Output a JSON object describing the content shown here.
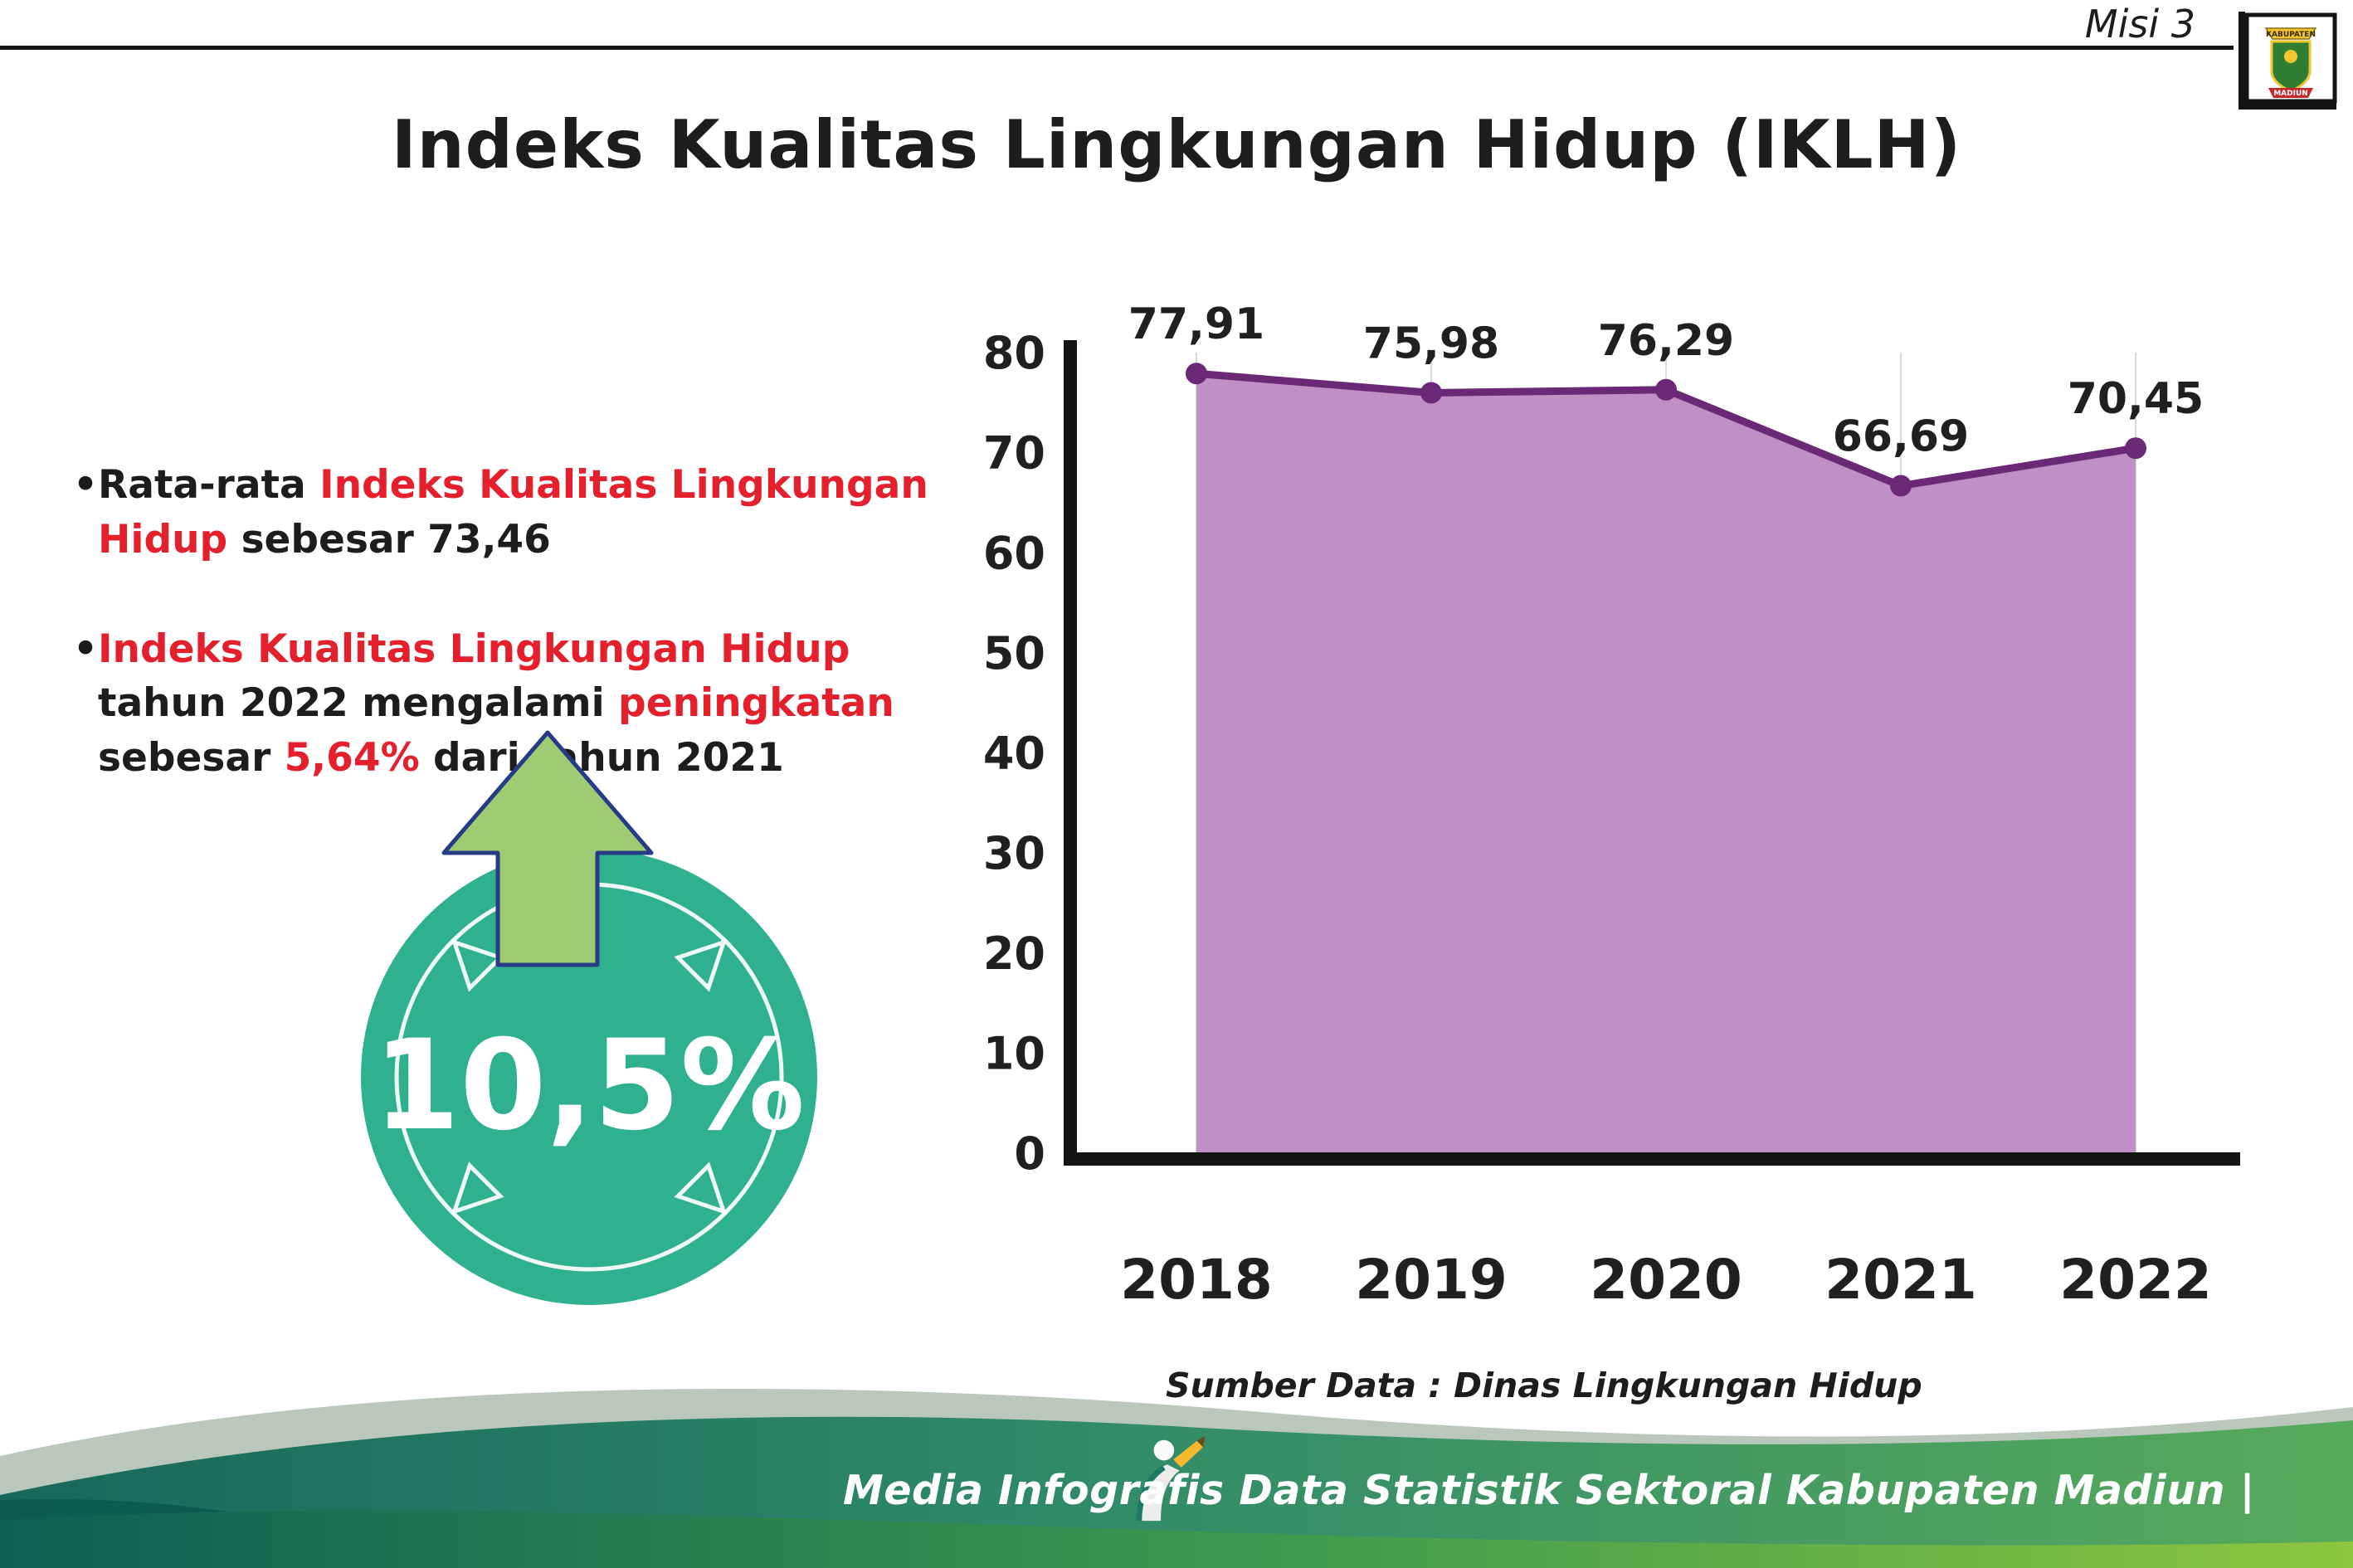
{
  "colors": {
    "red": "#e5202d",
    "ink": "#1d1d1b",
    "teal": "#2fb190",
    "arrow_green": "#9fcb73",
    "purple_fill": "#c08fc6",
    "purple_line": "#6b2877"
  },
  "header": {
    "misi_label": "Misi 3",
    "title": "Indeks Kualitas Lingkungan Hidup (IKLH)"
  },
  "logo": {
    "top": "KABUPATEN",
    "bottom": "MADIUN"
  },
  "bullet_char": "•",
  "bullets": [
    {
      "segments": [
        {
          "text": "Rata-rata ",
          "style": "plain"
        },
        {
          "text": "Indeks Kualitas Lingkungan Hidup",
          "style": "red"
        },
        {
          "text": " sebesar 73,46",
          "style": "plain"
        }
      ]
    },
    {
      "segments": [
        {
          "text": "Indeks Kualitas Lingkungan Hidup",
          "style": "red"
        },
        {
          "text": " tahun 2022 mengalami ",
          "style": "plain"
        },
        {
          "text": "peningkatan",
          "style": "red"
        },
        {
          "text": " sebesar ",
          "style": "plain"
        },
        {
          "text": "5,64%",
          "style": "red"
        },
        {
          "text": " dari tahun 2021",
          "style": "plain"
        }
      ]
    }
  ],
  "badge": {
    "value": "10,5%"
  },
  "chart_data": {
    "type": "area",
    "categories": [
      "2018",
      "2019",
      "2020",
      "2021",
      "2022"
    ],
    "values": [
      77.91,
      75.98,
      76.29,
      66.69,
      70.45
    ],
    "value_labels": [
      "77,91",
      "75,98",
      "76,29",
      "66,69",
      "70,45"
    ],
    "ylim": [
      0,
      80
    ],
    "ytick_step": 10,
    "grid": "vertical",
    "legend": "none",
    "fill_color": "#c08fc6",
    "line_color": "#6b2877",
    "axis_color": "#141414",
    "grid_color": "#dadada",
    "label_color": "#221f1f",
    "source": "Sumber Data : Dinas Lingkungan Hidup"
  },
  "footer": {
    "text": "Media Infografis Data Statistik Sektoral Kabupaten Madiun |"
  }
}
